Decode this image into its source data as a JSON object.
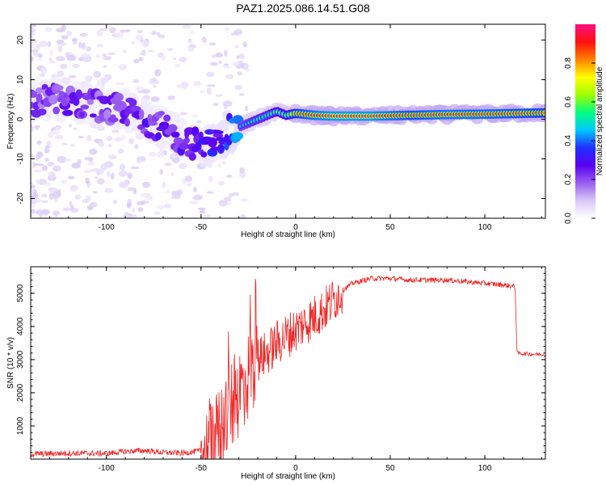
{
  "title": "PAZ1.2025.086.14.51.G08",
  "chart_data": [
    {
      "type": "heatmap",
      "xlabel": "Height of straight line (km)",
      "ylabel": "Frequency (Hz)",
      "xlim": [
        -140,
        132
      ],
      "ylim": [
        -25,
        24
      ],
      "xticks": [
        -100,
        -50,
        0,
        50,
        100
      ],
      "yticks": [
        -20,
        -10,
        0,
        10,
        20
      ],
      "colorbar": {
        "label": "Normalized spectral amplitude",
        "range": [
          0,
          1
        ],
        "ticks": [
          0.0,
          0.2,
          0.4,
          0.6,
          0.8
        ],
        "tick_labels": [
          "0.0",
          "0.2",
          "0.4",
          "0.6",
          "0.8"
        ],
        "colormap": [
          "#ffffff",
          "#d8c8f5",
          "#9a5ef0",
          "#5a00f0",
          "#2030ff",
          "#00c8ff",
          "#00ff80",
          "#a0ff00",
          "#ffff00",
          "#ff8000",
          "#ff1010",
          "#ff1080"
        ]
      },
      "ridge": {
        "x": [
          -140,
          -130,
          -120,
          -110,
          -100,
          -90,
          -80,
          -70,
          -60,
          -50,
          -45,
          -40,
          -35,
          -30,
          -25,
          -20,
          -15,
          -10,
          -5,
          0,
          10,
          20,
          40,
          60,
          80,
          100,
          120,
          132
        ],
        "freq": [
          4,
          5,
          5,
          4,
          3,
          2,
          0,
          -2,
          -5,
          -7,
          -6,
          -5,
          -3,
          -2,
          -1,
          0,
          1,
          2,
          1,
          1.5,
          1,
          0.8,
          0.8,
          1,
          1.2,
          1.3,
          1.5,
          1.6
        ],
        "amplitude": [
          0.2,
          0.2,
          0.22,
          0.22,
          0.2,
          0.22,
          0.24,
          0.24,
          0.24,
          0.26,
          0.3,
          0.3,
          0.35,
          0.45,
          0.5,
          0.55,
          0.55,
          0.6,
          0.6,
          0.82,
          0.9,
          0.95,
          0.95,
          0.85,
          0.9,
          0.88,
          0.85,
          0.82
        ]
      }
    },
    {
      "type": "line",
      "xlabel": "Height of straight line (km)",
      "ylabel": "SNR (10 * v/v)",
      "xlim": [
        -140,
        132
      ],
      "ylim": [
        0,
        5800
      ],
      "xticks": [
        -100,
        -50,
        0,
        50,
        100
      ],
      "yticks": [
        1000,
        2000,
        3000,
        4000,
        5000
      ],
      "series": [
        {
          "color": "#ee2222",
          "x": [
            -140,
            -120,
            -100,
            -90,
            -80,
            -70,
            -60,
            -50,
            -45,
            -42,
            -40,
            -38,
            -35,
            -32,
            -30,
            -28,
            -25,
            -22,
            -20,
            -15,
            -10,
            -5,
            0,
            5,
            10,
            15,
            20,
            25,
            30,
            40,
            50,
            60,
            70,
            80,
            90,
            100,
            110,
            116,
            117,
            120,
            132
          ],
          "y": [
            150,
            180,
            170,
            230,
            260,
            200,
            180,
            250,
            450,
            600,
            900,
            1200,
            1500,
            1800,
            2000,
            2300,
            2500,
            2800,
            3000,
            3200,
            3500,
            3700,
            3900,
            4100,
            4300,
            4500,
            4800,
            5100,
            5300,
            5450,
            5450,
            5400,
            5400,
            5400,
            5350,
            5300,
            5250,
            5200,
            3200,
            3180,
            3150
          ]
        }
      ]
    }
  ]
}
